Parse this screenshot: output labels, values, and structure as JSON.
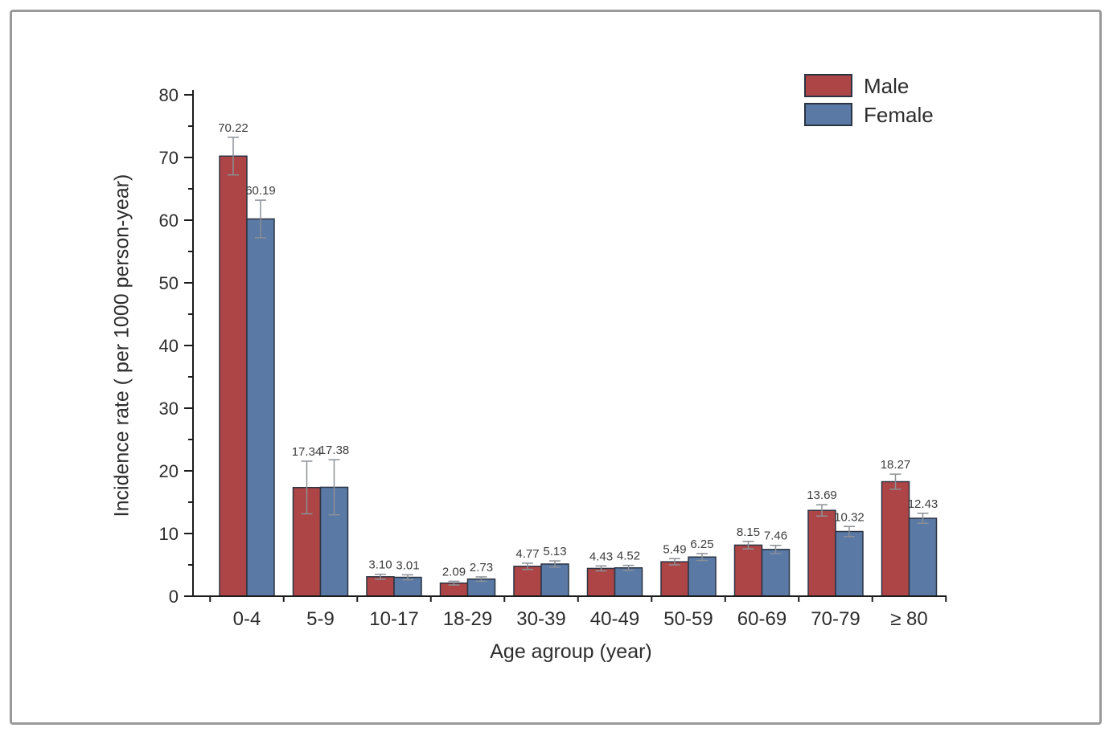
{
  "frame": {
    "border_color": "#9a9a9a",
    "background": "#ffffff"
  },
  "chart_data": {
    "type": "bar",
    "title": "",
    "xlabel": "Age agroup (year)",
    "ylabel": "Incidence rate ( per 1000 person-year)",
    "categories": [
      "0-4",
      "5-9",
      "10-17",
      "18-29",
      "30-39",
      "40-49",
      "50-59",
      "60-69",
      "70-79",
      "≥ 80"
    ],
    "series": [
      {
        "name": "Male",
        "color": "#ad4547",
        "values": [
          70.22,
          17.34,
          3.1,
          2.09,
          4.77,
          4.43,
          5.49,
          8.15,
          13.69,
          18.27
        ],
        "value_labels": [
          "70.22",
          "17.34",
          "3.10",
          "2.09",
          "4.77",
          "4.43",
          "5.49",
          "8.15",
          "13.69",
          "18.27"
        ],
        "errors": [
          3.0,
          4.2,
          0.4,
          0.3,
          0.5,
          0.4,
          0.5,
          0.6,
          0.9,
          1.2
        ]
      },
      {
        "name": "Female",
        "color": "#5a79a5",
        "values": [
          60.19,
          17.38,
          3.01,
          2.73,
          5.13,
          4.52,
          6.25,
          7.46,
          10.32,
          12.43
        ],
        "value_labels": [
          "60.19",
          "17.38",
          "3.01",
          "2.73",
          "5.13",
          "4.52",
          "6.25",
          "7.46",
          "10.32",
          "12.43"
        ],
        "errors": [
          3.0,
          4.4,
          0.4,
          0.35,
          0.5,
          0.4,
          0.55,
          0.65,
          0.8,
          0.8
        ]
      }
    ],
    "ylim": [
      0,
      80
    ],
    "yticks": [
      0,
      10,
      20,
      30,
      40,
      50,
      60,
      70,
      80
    ],
    "ytick_step": 10,
    "ytick_minor_step": 5,
    "grid": false,
    "legend_position": "top-right",
    "error_bars": true,
    "bar_outline": "#2b3442",
    "error_bar_color": "#8b9096",
    "axis_color": "#1c1c1c",
    "text_color": "#2d2d2d",
    "value_label_color": "#3d3d3d"
  }
}
